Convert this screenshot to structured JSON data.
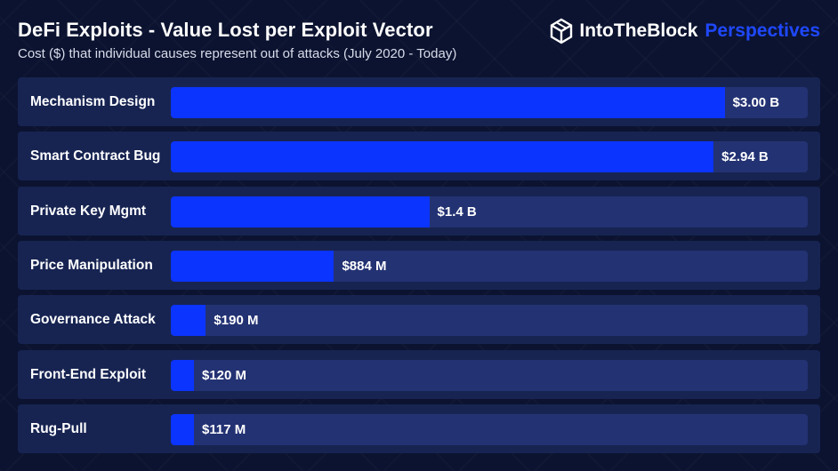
{
  "header": {
    "title": "DeFi Exploits - Value Lost per Exploit Vector",
    "subtitle": "Cost ($) that individual causes represent out of attacks (July 2020 - Today)"
  },
  "brand": {
    "logo_icon": "intotheblock-hexagon-icon",
    "name": "IntoTheBlock",
    "tagline": "Perspectives",
    "accent_color": "#1f48ff"
  },
  "chart_data": {
    "type": "bar",
    "orientation": "horizontal",
    "title": "DeFi Exploits - Value Lost per Exploit Vector",
    "subtitle": "Cost ($) that individual causes represent out of attacks (July 2020 - Today)",
    "xlabel": "",
    "ylabel": "",
    "xlim": [
      0,
      3.45
    ],
    "value_unit": "billion USD",
    "grid": false,
    "legend": "none",
    "bar_color": "#0b34ff",
    "track_color": "#233273",
    "categories": [
      "Mechanism Design",
      "Smart Contract Bug",
      "Private Key Mgmt",
      "Price Manipulation",
      "Governance Attack",
      "Front-End Exploit",
      "Rug-Pull"
    ],
    "values": [
      3.0,
      2.94,
      1.4,
      0.884,
      0.19,
      0.12,
      0.117
    ],
    "value_labels": [
      "$3.00 B",
      "$2.94 B",
      "$1.4 B",
      "$884 M",
      "$190 M",
      "$120 M",
      "$117 M"
    ]
  }
}
